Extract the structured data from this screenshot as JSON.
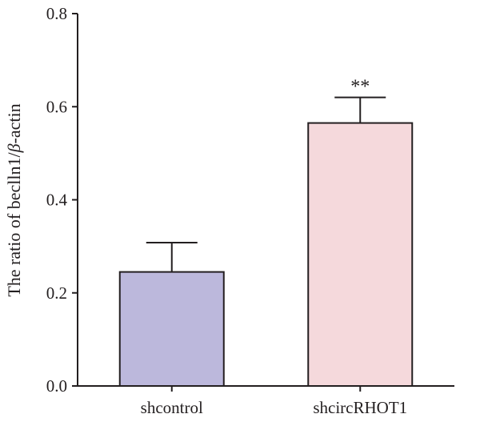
{
  "chart_data": {
    "type": "bar",
    "categories": [
      "shcontrol",
      "shcircRHOT1"
    ],
    "values": [
      0.245,
      0.565
    ],
    "errors": [
      0.063,
      0.055
    ],
    "annotations": [
      "",
      "**"
    ],
    "colors": [
      "#bcb8dc",
      "#f5d9dc"
    ],
    "edge_color": "#231f20",
    "ylabel_parts": [
      "The ratio of becl",
      "l",
      "n1/",
      "β",
      "-actin"
    ],
    "ylim": [
      0,
      0.8
    ],
    "yticks": [
      0.0,
      0.2,
      0.4,
      0.6,
      0.8
    ],
    "ytick_labels": [
      "0.0",
      "0.2",
      "0.4",
      "0.6",
      "0.8"
    ],
    "title": "",
    "xlabel": ""
  }
}
